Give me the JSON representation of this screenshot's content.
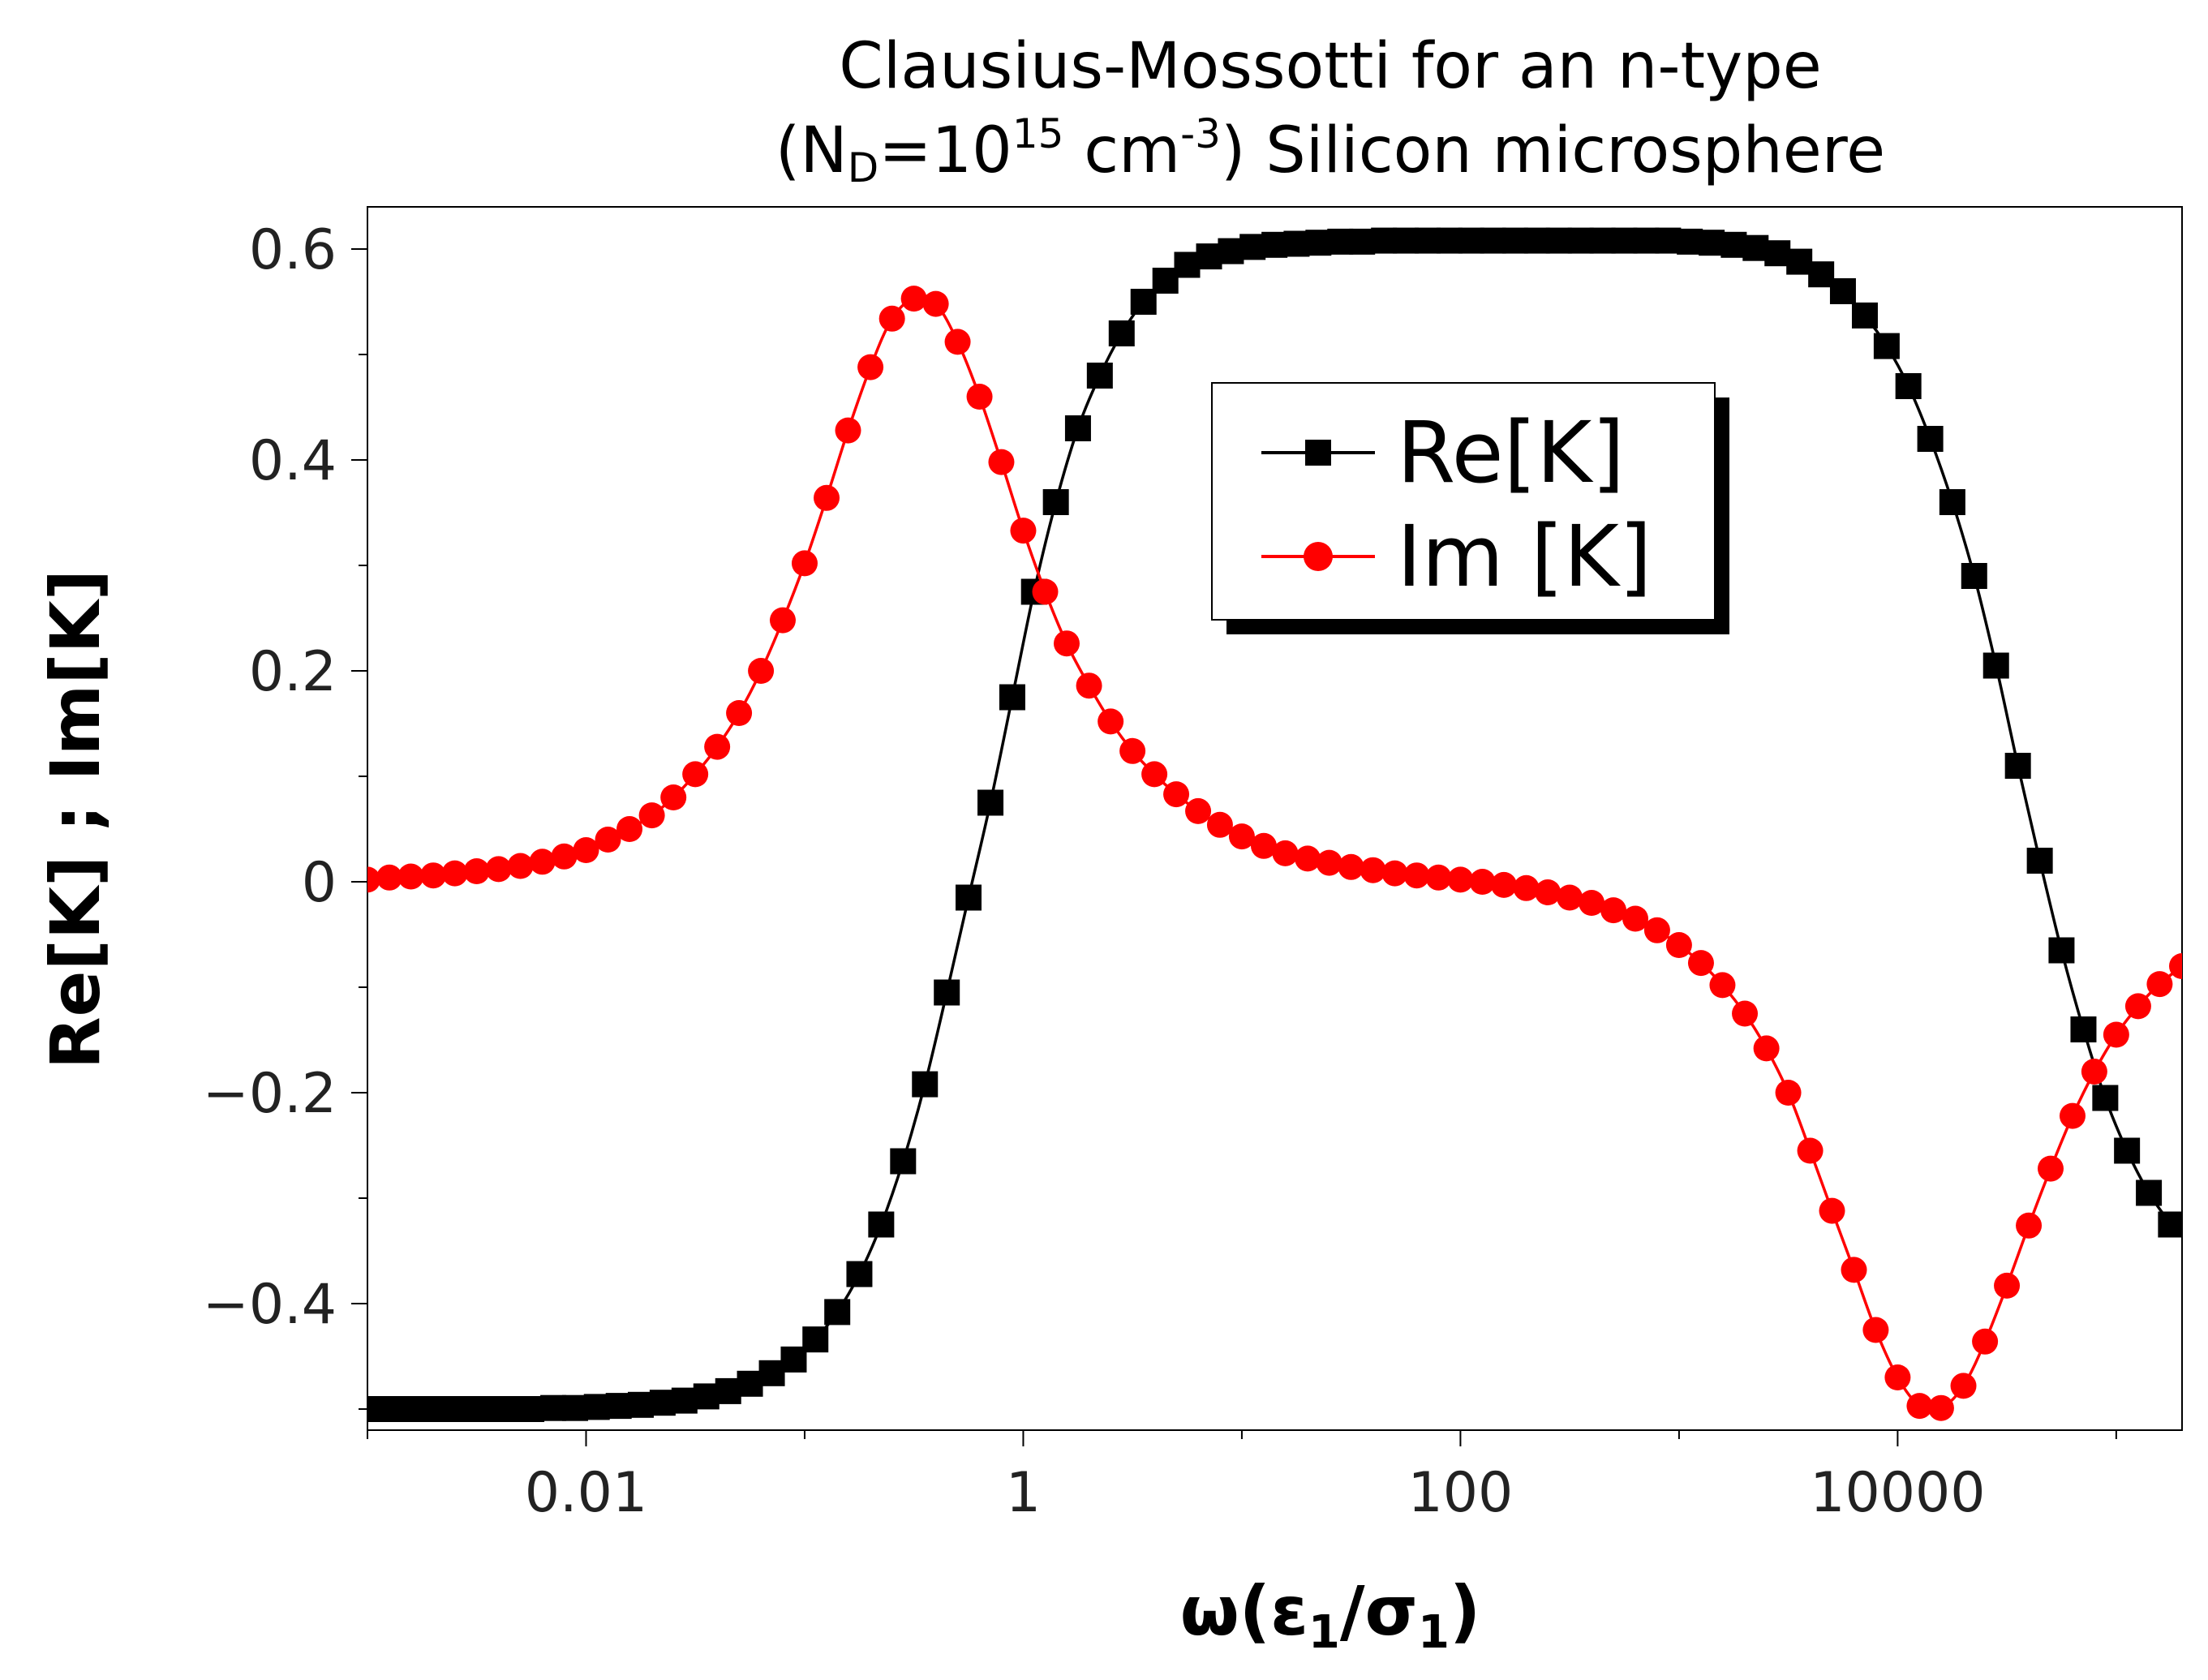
{
  "chart_data": {
    "type": "line",
    "title_line1": "Clausius-Mossotti for an n-type",
    "title_line2": {
      "open": "(N",
      "sub": "D",
      "eq": "=10",
      "sup": "15",
      "unit": " cm",
      "unit_sup": "-3",
      "rest": ") Silicon microsphere"
    },
    "xlabel": {
      "main": "ω(ε",
      "sub1": "1",
      "slash": "/σ",
      "sub2": "1",
      "close": ")"
    },
    "ylabel": "Re[K] ; Im[K]",
    "xscale": "log",
    "xlim": [
      0.001,
      200000
    ],
    "ylim": [
      -0.52,
      0.64
    ],
    "xticks": [
      0.01,
      1,
      100,
      10000
    ],
    "xtick_labels": [
      "0.01",
      "1",
      "100",
      "10000"
    ],
    "yticks": [
      -0.4,
      -0.2,
      0,
      0.2,
      0.4,
      0.6
    ],
    "ytick_labels": [
      "−0.4",
      "−0.2",
      "0",
      "0.2",
      "0.4",
      "0.6"
    ],
    "legend_position": "upper-center",
    "series": [
      {
        "name": "Re[K]",
        "color": "#000000",
        "marker": "square",
        "x": [
          0.00112,
          0.00141,
          0.00178,
          0.00224,
          0.00282,
          0.00355,
          0.00447,
          0.00562,
          0.00708,
          0.00891,
          0.0112,
          0.0141,
          0.0178,
          0.0224,
          0.0282,
          0.0355,
          0.0447,
          0.0562,
          0.0708,
          0.0891,
          0.112,
          0.141,
          0.178,
          0.224,
          0.282,
          0.355,
          0.447,
          0.562,
          0.708,
          0.891,
          1.12,
          1.41,
          1.78,
          2.24,
          2.82,
          3.55,
          4.47,
          5.62,
          7.08,
          8.91,
          11.2,
          14.1,
          17.8,
          22.4,
          28.2,
          35.5,
          44.7,
          56.2,
          70.8,
          89.1,
          112,
          141,
          178,
          224,
          282,
          355,
          447,
          562,
          708,
          891,
          1120,
          1410,
          1780,
          2240,
          2820,
          3550,
          4470,
          5620,
          7080,
          8910,
          11200,
          14100,
          17800,
          22400,
          28200,
          35500,
          44700,
          56200,
          70800,
          89100,
          112000,
          141000,
          178000
        ],
        "y": [
          -0.5,
          -0.5,
          -0.5,
          -0.5,
          -0.5,
          -0.5,
          -0.5,
          -0.5,
          -0.499,
          -0.499,
          -0.498,
          -0.497,
          -0.496,
          -0.494,
          -0.492,
          -0.488,
          -0.483,
          -0.476,
          -0.466,
          -0.453,
          -0.434,
          -0.408,
          -0.372,
          -0.325,
          -0.265,
          -0.192,
          -0.105,
          -0.015,
          0.075,
          0.175,
          0.275,
          0.36,
          0.43,
          0.48,
          0.52,
          0.55,
          0.57,
          0.585,
          0.593,
          0.598,
          0.602,
          0.604,
          0.605,
          0.606,
          0.607,
          0.607,
          0.608,
          0.608,
          0.608,
          0.608,
          0.608,
          0.608,
          0.608,
          0.608,
          0.608,
          0.608,
          0.608,
          0.608,
          0.608,
          0.608,
          0.607,
          0.606,
          0.604,
          0.601,
          0.596,
          0.588,
          0.576,
          0.56,
          0.537,
          0.508,
          0.47,
          0.42,
          0.36,
          0.29,
          0.205,
          0.11,
          0.02,
          -0.065,
          -0.14,
          -0.205,
          -0.255,
          -0.295,
          -0.325
        ]
      },
      {
        "name": "Im [K]",
        "color": "#ff0000",
        "marker": "circle",
        "x": [
          0.001,
          0.00126,
          0.00158,
          0.002,
          0.00251,
          0.00316,
          0.00398,
          0.00501,
          0.00631,
          0.00794,
          0.01,
          0.0126,
          0.0158,
          0.02,
          0.0251,
          0.0316,
          0.0398,
          0.0501,
          0.0631,
          0.0794,
          0.1,
          0.126,
          0.158,
          0.2,
          0.251,
          0.316,
          0.398,
          0.501,
          0.631,
          0.794,
          1,
          1.26,
          1.58,
          2,
          2.51,
          3.16,
          3.98,
          5.01,
          6.31,
          7.94,
          10,
          12.6,
          15.8,
          20,
          25.1,
          31.6,
          39.8,
          50.1,
          63.1,
          79.4,
          100,
          126,
          158,
          200,
          251,
          316,
          398,
          501,
          631,
          794,
          1000,
          1260,
          1580,
          2000,
          2510,
          3160,
          3980,
          5010,
          6310,
          7940,
          10000,
          12600,
          15800,
          20000,
          25100,
          31600,
          39800,
          50100,
          63100,
          79400,
          100000,
          126000,
          158000,
          200000
        ],
        "y": [
          0.002,
          0.004,
          0.005,
          0.006,
          0.008,
          0.01,
          0.012,
          0.015,
          0.019,
          0.024,
          0.03,
          0.04,
          0.05,
          0.063,
          0.08,
          0.102,
          0.128,
          0.16,
          0.2,
          0.248,
          0.302,
          0.364,
          0.428,
          0.488,
          0.534,
          0.553,
          0.548,
          0.512,
          0.46,
          0.398,
          0.333,
          0.275,
          0.226,
          0.186,
          0.152,
          0.124,
          0.102,
          0.083,
          0.067,
          0.054,
          0.043,
          0.034,
          0.027,
          0.022,
          0.018,
          0.014,
          0.011,
          0.008,
          0.006,
          0.004,
          0.002,
          0.0,
          -0.003,
          -0.006,
          -0.01,
          -0.015,
          -0.02,
          -0.027,
          -0.035,
          -0.046,
          -0.06,
          -0.077,
          -0.098,
          -0.125,
          -0.158,
          -0.2,
          -0.255,
          -0.312,
          -0.368,
          -0.425,
          -0.47,
          -0.497,
          -0.499,
          -0.478,
          -0.436,
          -0.383,
          -0.326,
          -0.272,
          -0.222,
          -0.18,
          -0.145,
          -0.118,
          -0.097,
          -0.08
        ]
      }
    ]
  }
}
